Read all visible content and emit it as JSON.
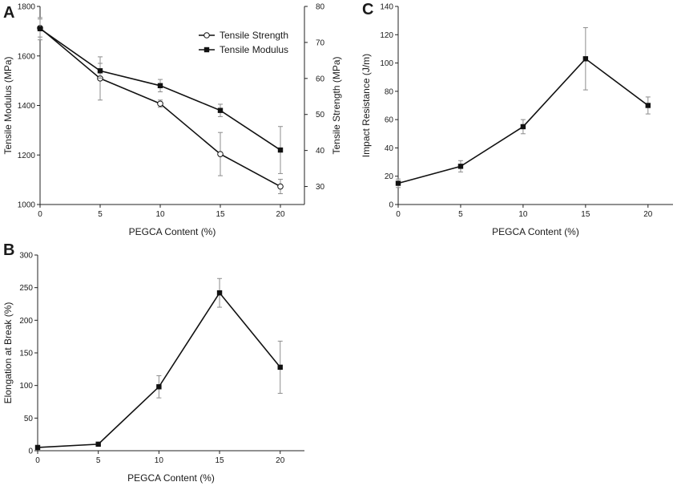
{
  "chart_data": [
    {
      "panel": "A",
      "type": "line",
      "xlabel": "PEGCA  Content (%)",
      "ylabel": "Tensile Modulus (MPa)",
      "y2label": "Tensile Strength (MPa)",
      "xticks": [
        0,
        5,
        10,
        15,
        20
      ],
      "xlim": [
        0,
        22
      ],
      "yticks": [
        1000,
        1200,
        1400,
        1600,
        1800
      ],
      "ylim": [
        1000,
        1800
      ],
      "y2ticks": [
        30,
        40,
        50,
        60,
        70,
        80
      ],
      "y2lim": [
        25,
        80
      ],
      "legend_position": "top-right",
      "series": [
        {
          "name": "Tensile Strength",
          "axis": "right",
          "marker": "open-circle",
          "x": [
            0,
            5,
            10,
            15,
            20
          ],
          "values": [
            74,
            60,
            53,
            39,
            30
          ],
          "errors": [
            2.5,
            6,
            1,
            6,
            2
          ]
        },
        {
          "name": "Tensile Modulus",
          "axis": "left",
          "marker": "filled-square",
          "x": [
            0,
            5,
            10,
            15,
            20
          ],
          "values": [
            1710,
            1540,
            1480,
            1380,
            1220
          ],
          "errors": [
            45,
            30,
            25,
            25,
            95
          ]
        }
      ]
    },
    {
      "panel": "B",
      "type": "line",
      "xlabel": "PEGCA  Content (%)",
      "ylabel": "Elongation at Break (%)",
      "xticks": [
        0,
        5,
        10,
        15,
        20
      ],
      "xlim": [
        0,
        22
      ],
      "yticks": [
        0,
        50,
        100,
        150,
        200,
        250,
        300
      ],
      "ylim": [
        0,
        300
      ],
      "series": [
        {
          "name": "Elongation at Break",
          "marker": "filled-square",
          "x": [
            0,
            5,
            10,
            15,
            20
          ],
          "values": [
            5,
            10,
            98,
            242,
            128
          ],
          "errors": [
            0,
            0,
            17,
            22,
            40
          ]
        }
      ]
    },
    {
      "panel": "C",
      "type": "line",
      "xlabel": "PEGCA  Content (%)",
      "ylabel": "Impact Resistance (J/m)",
      "xticks": [
        0,
        5,
        10,
        15,
        20
      ],
      "xlim": [
        0,
        22
      ],
      "yticks": [
        0,
        20,
        40,
        60,
        80,
        100,
        120,
        140
      ],
      "ylim": [
        0,
        140
      ],
      "series": [
        {
          "name": "Impact Resistance",
          "marker": "filled-square",
          "x": [
            0,
            5,
            10,
            15,
            20
          ],
          "values": [
            15,
            27,
            55,
            103,
            70
          ],
          "errors": [
            3,
            4,
            5,
            22,
            6
          ]
        }
      ]
    }
  ]
}
